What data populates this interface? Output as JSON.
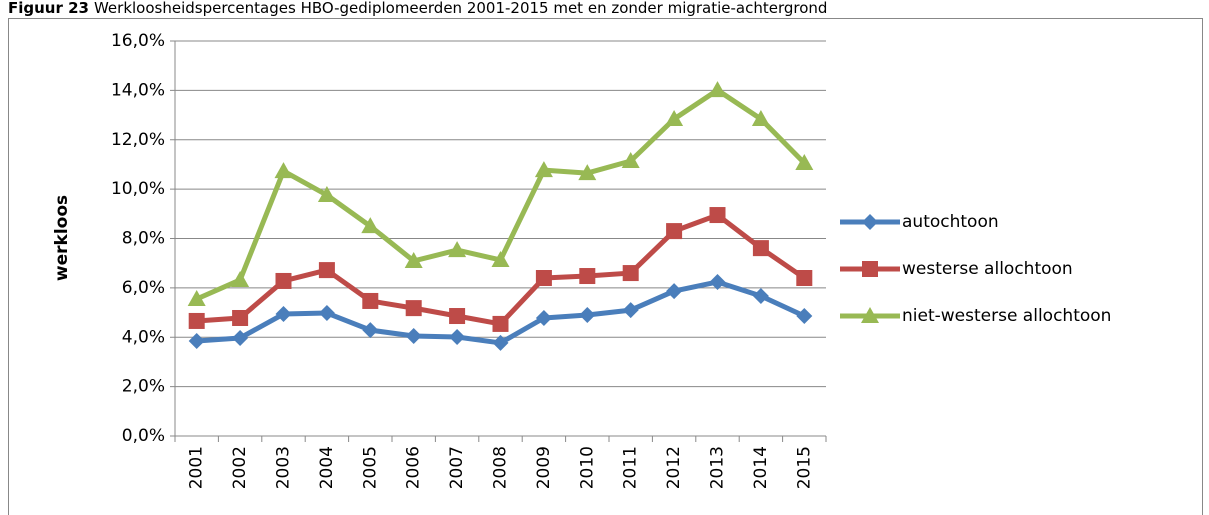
{
  "chart_data": {
    "type": "line",
    "title_label": "Figuur 23",
    "title": "Werkloosheidspercentages HBO-gediplomeerden  2001-2015 met en zonder migratie-achtergrond",
    "y_label": "werkloos",
    "categories": [
      "2001",
      "2002",
      "2003",
      "2004",
      "2005",
      "2006",
      "2007",
      "2008",
      "2009",
      "2010",
      "2011",
      "2012",
      "2013",
      "2014",
      "2015"
    ],
    "series": [
      {
        "name": "autochtoon",
        "color": "#4a7ebb",
        "marker": "diamond",
        "values": [
          3.85,
          3.97,
          4.94,
          4.98,
          4.29,
          4.05,
          4.01,
          3.77,
          4.78,
          4.9,
          5.1,
          5.87,
          6.24,
          5.67,
          4.86
        ]
      },
      {
        "name": "westerse allochtoon",
        "color": "#be4b48",
        "marker": "square",
        "values": [
          4.66,
          4.78,
          6.28,
          6.72,
          5.47,
          5.18,
          4.86,
          4.54,
          6.4,
          6.48,
          6.6,
          8.3,
          8.95,
          7.61,
          6.4
        ]
      },
      {
        "name": "niet-westerse allochtoon",
        "color": "#98b954",
        "marker": "triangle",
        "values": [
          5.55,
          6.32,
          10.73,
          9.76,
          8.5,
          7.09,
          7.53,
          7.13,
          10.77,
          10.65,
          11.14,
          12.84,
          14.01,
          12.84,
          11.06
        ]
      }
    ],
    "ylim": [
      0,
      16
    ],
    "yticks": [
      {
        "value": 0,
        "label": "0,0%"
      },
      {
        "value": 2,
        "label": "2,0%"
      },
      {
        "value": 4,
        "label": "4,0%"
      },
      {
        "value": 6,
        "label": "6,0%"
      },
      {
        "value": 8,
        "label": "8,0%"
      },
      {
        "value": 10,
        "label": "10,0%"
      },
      {
        "value": 12,
        "label": "12,0%"
      },
      {
        "value": 14,
        "label": "14,0%"
      },
      {
        "value": 16,
        "label": "16,0%"
      }
    ],
    "grid": true,
    "legend": "right"
  }
}
